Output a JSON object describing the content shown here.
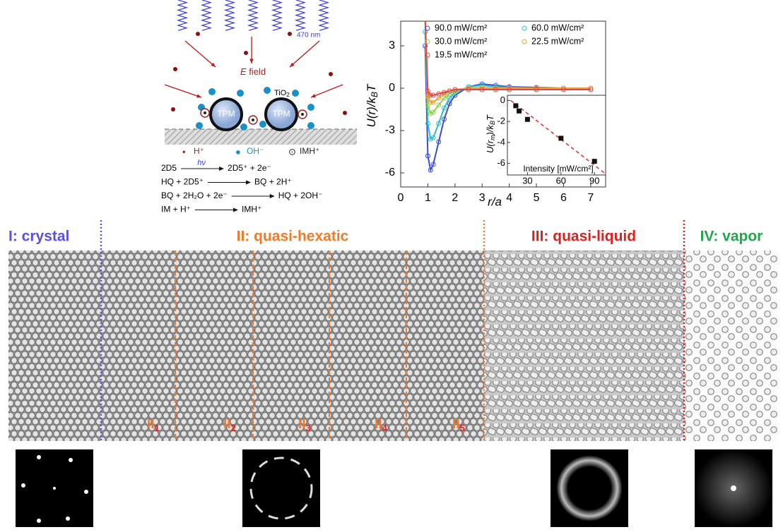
{
  "schematic": {
    "wavelength": "470 nm",
    "field_symbol": "E",
    "field_word": "field",
    "particles": [
      "TPM",
      "TPM"
    ],
    "coating": {
      "main": "TiO",
      "sub": "2"
    },
    "legend": [
      {
        "symbol": "•",
        "label": "H⁺",
        "color": "#b01c1c"
      },
      {
        "symbol": "●",
        "label": "OH⁻",
        "color": "#1a90c8"
      },
      {
        "symbol": "⊙",
        "label": "IMH⁺",
        "color": "#222222"
      }
    ],
    "equations": [
      {
        "left": "2D5",
        "over": "hν",
        "right": "2D5⁺ + 2e⁻"
      },
      {
        "left": "HQ + 2D5⁺",
        "over": null,
        "right": "BQ + 2H⁺"
      },
      {
        "left": "BQ + 2H₂O + 2e⁻",
        "over": null,
        "right": "HQ + 2OH⁻"
      },
      {
        "left": "IM + H⁺",
        "over": null,
        "right": "IMH⁺"
      }
    ]
  },
  "chart_data": {
    "type": "line",
    "x_label": "r/a",
    "y_label": {
      "main": "U(r)/k",
      "sub": "B",
      "tail": "T"
    },
    "xlim": [
      0,
      7.55
    ],
    "ylim": [
      -7,
      4.75
    ],
    "xticks": [
      0,
      1,
      2,
      3,
      4,
      5,
      6,
      7
    ],
    "yticks": [
      3,
      0,
      -3,
      -6
    ],
    "x": [
      0.9,
      1.0,
      1.1,
      1.2,
      1.4,
      1.6,
      1.8,
      2.0,
      2.5,
      3.0,
      3.5,
      4,
      5,
      6,
      7
    ],
    "series": [
      {
        "name": "90.0 mW/cm²",
        "color": "#3a4ddb",
        "values": [
          3,
          -4.8,
          -5.8,
          -5.4,
          -3.8,
          -2.2,
          -1.1,
          -0.5,
          0.1,
          0.3,
          0.2,
          0.1,
          0.05,
          0,
          0
        ]
      },
      {
        "name": "60.0 mW/cm²",
        "color": "#2bbfc8",
        "values": [
          4,
          -2.5,
          -3.6,
          -3.5,
          -2.5,
          -1.4,
          -0.7,
          -0.3,
          0.1,
          0.2,
          0.1,
          0.05,
          0,
          0,
          0
        ]
      },
      {
        "name": "30.0 mW/cm²",
        "color": "#8fd14a",
        "values": [
          5,
          -1.2,
          -1.8,
          -1.7,
          -1.2,
          -0.7,
          -0.4,
          -0.2,
          0,
          0.05,
          0,
          0,
          0,
          0,
          0
        ]
      },
      {
        "name": "22.5 mW/cm²",
        "color": "#e8a13a",
        "values": [
          5,
          -0.6,
          -1.0,
          -1.0,
          -0.7,
          -0.4,
          -0.2,
          -0.1,
          0,
          0,
          0,
          0,
          0,
          0,
          0
        ]
      },
      {
        "name": "19.5 mW/cm²",
        "color": "#e04848",
        "values": [
          5,
          -0.2,
          -0.5,
          -0.5,
          -0.4,
          -0.3,
          -0.2,
          -0.1,
          -0.1,
          -0.1,
          -0.1,
          -0.1,
          -0.1,
          -0.1,
          -0.1
        ]
      }
    ],
    "inset": {
      "type": "scatter",
      "x_label": "Intensity [mW/cm²]",
      "y_label": {
        "main": "U(r",
        "sub": "m",
        "tail": ")/k",
        "sub2": "B",
        "tail2": "T"
      },
      "xlim": [
        12,
        100
      ],
      "ylim": [
        -7.1,
        0.5
      ],
      "xticks": [
        30,
        60,
        90
      ],
      "yticks": [
        0,
        -2,
        -4,
        -6
      ],
      "x": [
        19.5,
        22.5,
        30,
        60,
        90
      ],
      "values": [
        -0.5,
        -1.0,
        -1.8,
        -3.6,
        -5.8
      ],
      "color": "#111111",
      "fit": {
        "x": [
          15,
          100
        ],
        "values": [
          0,
          -7
        ],
        "color": "#e03030"
      }
    }
  },
  "micrograph": {
    "regions": [
      {
        "label": "I: crystal",
        "color": "#5b4fe0"
      },
      {
        "label": "II: quasi-hexatic",
        "color": "#f07a2a"
      },
      {
        "label": "III: quasi-liquid",
        "color": "#e01e1e"
      },
      {
        "label": "IV: vapor",
        "color": "#1ea84a"
      }
    ],
    "subregions": [
      {
        "main": "II",
        "sub": "1"
      },
      {
        "main": "II",
        "sub": "2"
      },
      {
        "main": "II",
        "sub": "3"
      },
      {
        "main": "II",
        "sub": "4"
      },
      {
        "main": "II",
        "sub": "5"
      }
    ]
  }
}
